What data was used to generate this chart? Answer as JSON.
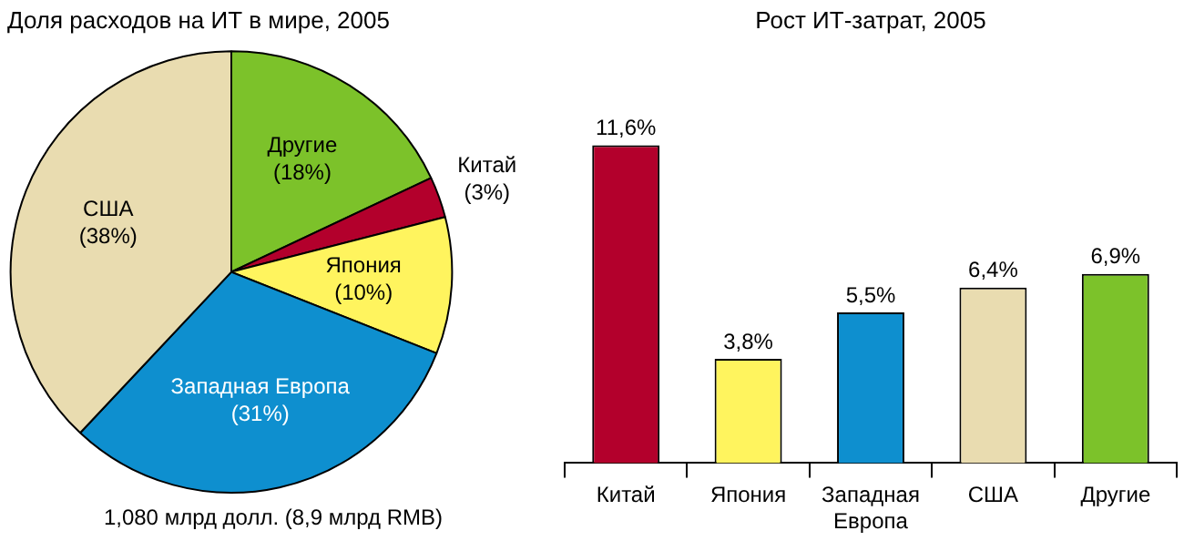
{
  "chart_data": [
    {
      "type": "pie",
      "title": "Доля расходов на ИТ в мире, 2005",
      "categories": [
        "Другие",
        "Китай",
        "Япония",
        "Западная Европа",
        "США"
      ],
      "values": [
        18,
        3,
        10,
        31,
        38
      ],
      "colors": [
        "#7cc22a",
        "#b3002c",
        "#fff45e",
        "#0e8fcf",
        "#e9dcb0"
      ],
      "value_labels": [
        "(18%)",
        "(3%)",
        "(10%)",
        "(31%)",
        "(38%)"
      ],
      "annotations": [
        "1,080 млрд долл. (8,9 млрд RMB)"
      ]
    },
    {
      "type": "bar",
      "title": "Рост ИТ-затрат, 2005",
      "categories": [
        "Китай",
        "Япония",
        "Западная Европа",
        "США",
        "Другие"
      ],
      "values": [
        11.6,
        3.8,
        5.5,
        6.4,
        6.9
      ],
      "colors": [
        "#b3002c",
        "#fff45e",
        "#0e8fcf",
        "#e9dcb0",
        "#7cc22a"
      ],
      "value_labels": [
        "11,6%",
        "3,8%",
        "5,5%",
        "6,4%",
        "6,9%"
      ]
    }
  ]
}
